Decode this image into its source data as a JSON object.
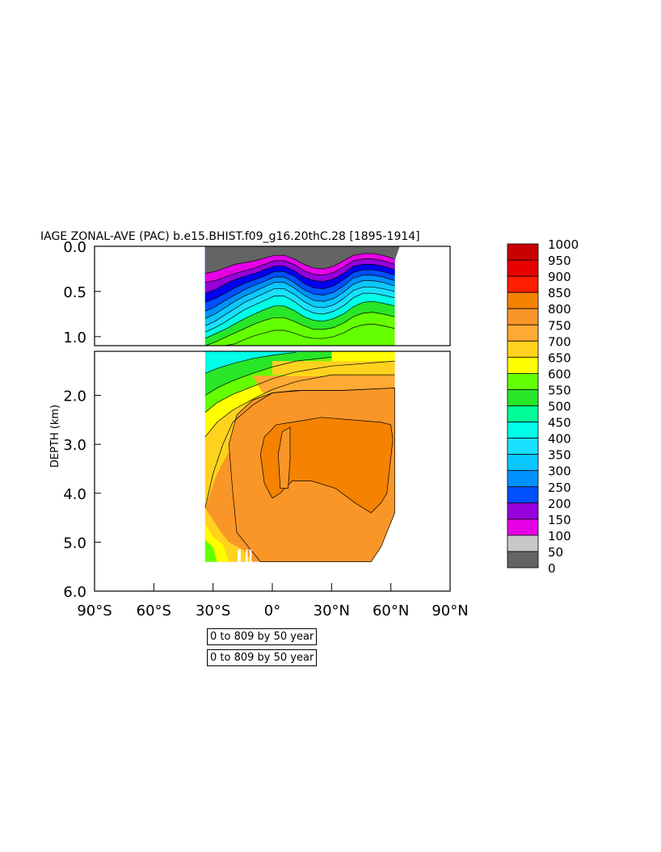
{
  "chart_data": {
    "type": "heatmap",
    "title": "IAGE ZONAL-AVE (PAC) b.e15.BHIST.f09_g16.20thC.28 [1895-1914]",
    "ylabel": "DEPTH (km)",
    "xlabel": "",
    "x_ticks": [
      "90°S",
      "60°S",
      "30°S",
      "0°",
      "30°N",
      "60°N",
      "90°N"
    ],
    "x_tick_values": [
      -90,
      -60,
      -30,
      0,
      30,
      60,
      90
    ],
    "xlim": [
      -90,
      90
    ],
    "upper_panel": {
      "ylim": [
        0,
        1.1
      ],
      "y_ticks": [
        "0.0",
        "0.5",
        "1.0"
      ],
      "y_tick_values": [
        0,
        0.5,
        1.0
      ]
    },
    "lower_panel": {
      "ylim": [
        1.1,
        6.0
      ],
      "y_ticks": [
        "2.0",
        "3.0",
        "4.0",
        "5.0",
        "6.0"
      ],
      "y_tick_values": [
        2,
        3,
        4,
        5,
        6
      ]
    },
    "data_extent": {
      "lat_min": -34,
      "lat_max": 62,
      "max_depth_km": 5.4
    },
    "legend": {
      "placement": "right",
      "labels": [
        "1000",
        "950",
        "900",
        "850",
        "800",
        "750",
        "700",
        "650",
        "600",
        "550",
        "500",
        "450",
        "400",
        "350",
        "300",
        "250",
        "200",
        "150",
        "100",
        "50",
        "0"
      ],
      "colors": [
        "#c80000",
        "#dc0000",
        "#f00000",
        "#ff2800",
        "#f58200",
        "#fa9628",
        "#ffaa32",
        "#ffd21e",
        "#ffff00",
        "#64ff00",
        "#28e628",
        "#00ff9b",
        "#00ffe6",
        "#19e1ff",
        "#0ac8ff",
        "#0091ff",
        "#0050ff",
        "#0000f0",
        "#9600dc",
        "#e600e6",
        "#c8c8c8",
        "#646464"
      ],
      "color_bins": [
        [
          950,
          1000
        ],
        [
          900,
          950
        ],
        [
          850,
          900
        ],
        [
          800,
          850
        ],
        [
          750,
          800
        ],
        [
          700,
          750
        ],
        [
          650,
          700
        ],
        [
          600,
          650
        ],
        [
          550,
          600
        ],
        [
          500,
          550
        ],
        [
          450,
          500
        ],
        [
          400,
          450
        ],
        [
          350,
          400
        ],
        [
          300,
          350
        ],
        [
          250,
          300
        ],
        [
          200,
          250
        ],
        [
          150,
          200
        ],
        [
          100,
          150
        ],
        [
          50,
          100
        ],
        [
          0,
          50
        ]
      ]
    },
    "upper_contours": [
      {
        "value": 50,
        "depth": [
          0.3,
          0.28,
          0.24,
          0.2,
          0.18,
          0.16,
          0.13,
          0.1,
          0.1,
          0.14,
          0.2,
          0.24,
          0.25,
          0.22,
          0.16,
          0.1,
          0.08,
          0.08,
          0.1,
          0.14
        ]
      },
      {
        "value": 100,
        "depth": [
          0.4,
          0.38,
          0.34,
          0.3,
          0.27,
          0.24,
          0.2,
          0.16,
          0.16,
          0.2,
          0.27,
          0.31,
          0.32,
          0.29,
          0.23,
          0.16,
          0.14,
          0.14,
          0.16,
          0.2
        ]
      },
      {
        "value": 150,
        "depth": [
          0.52,
          0.48,
          0.42,
          0.37,
          0.33,
          0.3,
          0.26,
          0.22,
          0.22,
          0.27,
          0.34,
          0.38,
          0.39,
          0.36,
          0.3,
          0.22,
          0.2,
          0.2,
          0.22,
          0.26
        ]
      },
      {
        "value": 200,
        "depth": [
          0.62,
          0.58,
          0.52,
          0.46,
          0.41,
          0.37,
          0.33,
          0.28,
          0.28,
          0.33,
          0.41,
          0.46,
          0.47,
          0.44,
          0.37,
          0.29,
          0.26,
          0.26,
          0.28,
          0.32
        ]
      },
      {
        "value": 250,
        "depth": [
          0.72,
          0.67,
          0.6,
          0.54,
          0.48,
          0.43,
          0.39,
          0.34,
          0.34,
          0.4,
          0.48,
          0.53,
          0.54,
          0.51,
          0.44,
          0.35,
          0.32,
          0.32,
          0.34,
          0.38
        ]
      },
      {
        "value": 300,
        "depth": [
          0.8,
          0.75,
          0.68,
          0.61,
          0.55,
          0.5,
          0.45,
          0.4,
          0.4,
          0.46,
          0.54,
          0.6,
          0.61,
          0.58,
          0.51,
          0.42,
          0.38,
          0.38,
          0.4,
          0.44
        ]
      },
      {
        "value": 350,
        "depth": [
          0.88,
          0.83,
          0.76,
          0.69,
          0.62,
          0.57,
          0.52,
          0.47,
          0.47,
          0.53,
          0.61,
          0.67,
          0.68,
          0.65,
          0.58,
          0.49,
          0.45,
          0.45,
          0.47,
          0.5
        ]
      },
      {
        "value": 400,
        "depth": [
          0.95,
          0.9,
          0.84,
          0.77,
          0.7,
          0.65,
          0.6,
          0.55,
          0.55,
          0.61,
          0.69,
          0.74,
          0.75,
          0.72,
          0.66,
          0.57,
          0.52,
          0.52,
          0.54,
          0.57
        ]
      },
      {
        "value": 450,
        "depth": [
          1.02,
          0.97,
          0.92,
          0.86,
          0.8,
          0.75,
          0.7,
          0.66,
          0.66,
          0.71,
          0.78,
          0.82,
          0.83,
          0.8,
          0.75,
          0.67,
          0.62,
          0.61,
          0.63,
          0.66
        ]
      },
      {
        "value": 500,
        "depth": [
          1.1,
          1.06,
          1.01,
          0.96,
          0.91,
          0.86,
          0.82,
          0.79,
          0.79,
          0.83,
          0.88,
          0.92,
          0.92,
          0.9,
          0.85,
          0.78,
          0.74,
          0.73,
          0.75,
          0.78
        ]
      },
      {
        "value": 550,
        "depth": [
          1.1,
          1.1,
          1.1,
          1.08,
          1.03,
          0.99,
          0.96,
          0.93,
          0.93,
          0.96,
          1.0,
          1.02,
          1.02,
          1.0,
          0.96,
          0.9,
          0.87,
          0.86,
          0.88,
          0.91
        ]
      }
    ],
    "upper_lats": [
      -34,
      -29,
      -24,
      -19,
      -14,
      -9,
      -4,
      1,
      6,
      11,
      16,
      21,
      26,
      31,
      36,
      41,
      46,
      51,
      56,
      62
    ],
    "lower_regions": [
      {
        "value_bin": [
          450,
          500
        ],
        "lat": -34,
        "depth_range": [
          1.1,
          1.4
        ]
      },
      {
        "value_bin": [
          500,
          550
        ],
        "lat": -34,
        "depth_range": [
          1.4,
          1.8
        ]
      },
      {
        "value_bin": [
          550,
          600
        ],
        "lat": -34,
        "depth_range": [
          1.8,
          2.2
        ]
      },
      {
        "value_bin": [
          600,
          650
        ],
        "lat": -34,
        "depth_range": [
          2.2,
          2.5
        ]
      },
      {
        "value_bin": [
          650,
          700
        ],
        "lat": -34,
        "depth_range": [
          2.5,
          4.3
        ]
      },
      {
        "value_bin": [
          700,
          750
        ],
        "lat": 0,
        "depth_range": [
          1.3,
          5.4
        ]
      },
      {
        "value_bin": [
          750,
          800
        ],
        "lat": 20,
        "depth_range": [
          1.9,
          5.4
        ]
      },
      {
        "value_bin": [
          800,
          850
        ],
        "lat": 30,
        "depth_range": [
          2.5,
          4.5
        ]
      }
    ]
  },
  "notes": [
    "0 to 809 by 50 year",
    "0 to 809 by 50 year"
  ]
}
